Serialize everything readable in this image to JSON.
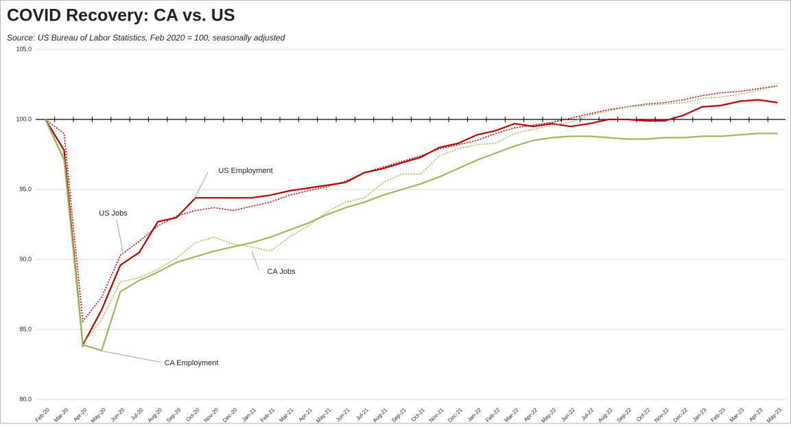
{
  "chart_data": {
    "type": "line",
    "title": "COVID Recovery:  CA vs. US",
    "subtitle": "Source:  US Bureau of Labor Statistics, Feb 2020 = 100, seasonally adjusted",
    "categories": [
      "Feb-20",
      "Mar-20",
      "Apr-20",
      "May-20",
      "Jun-20",
      "Jul-20",
      "Aug-20",
      "Sep-20",
      "Oct-20",
      "Nov-20",
      "Dec-20",
      "Jan-21",
      "Feb-21",
      "Mar-21",
      "Apr-21",
      "May-21",
      "Jun-21",
      "Jul-21",
      "Aug-21",
      "Sep-21",
      "Oct-21",
      "Nov-21",
      "Dec-21",
      "Jan-22",
      "Feb-22",
      "Mar-22",
      "Apr-22",
      "May-22",
      "Jun-22",
      "Jul-22",
      "Aug-22",
      "Sep-22",
      "Oct-22",
      "Nov-22",
      "Dec-22",
      "Jan-23",
      "Feb-23",
      "Mar-23",
      "Apr-23",
      "May-23"
    ],
    "series": [
      {
        "name": "US Employment",
        "color": "#c00000",
        "dash": false,
        "values": [
          100,
          97.8,
          83.9,
          86.4,
          89.6,
          90.5,
          92.7,
          93.0,
          94.4,
          94.4,
          94.4,
          94.4,
          94.6,
          94.9,
          95.1,
          95.3,
          95.5,
          96.2,
          96.5,
          96.9,
          97.3,
          98.0,
          98.3,
          98.9,
          99.2,
          99.7,
          99.5,
          99.7,
          99.5,
          99.7,
          100.0,
          100.0,
          99.9,
          99.9,
          100.3,
          100.9,
          101.0,
          101.3,
          101.4,
          101.2
        ]
      },
      {
        "name": "US Jobs",
        "color": "#c00000",
        "dash": true,
        "values": [
          100,
          99.0,
          85.6,
          87.3,
          90.3,
          91.3,
          92.4,
          93.1,
          93.5,
          93.7,
          93.5,
          93.8,
          94.1,
          94.6,
          94.9,
          95.2,
          95.6,
          96.2,
          96.6,
          97.0,
          97.4,
          97.9,
          98.2,
          98.5,
          99.0,
          99.4,
          99.6,
          99.8,
          100.1,
          100.4,
          100.7,
          100.9,
          101.1,
          101.2,
          101.4,
          101.7,
          101.9,
          102.0,
          102.2,
          102.4
        ]
      },
      {
        "name": "CA Jobs",
        "color": "#9bbb59",
        "dash": true,
        "values": [
          100,
          97.3,
          84.0,
          85.7,
          88.4,
          88.7,
          89.3,
          90.1,
          91.2,
          91.6,
          91.1,
          90.9,
          90.6,
          91.6,
          92.4,
          93.4,
          94.1,
          94.4,
          95.5,
          96.1,
          96.1,
          97.4,
          97.9,
          98.2,
          98.3,
          99.0,
          99.3,
          99.6,
          99.8,
          100.3,
          100.6,
          100.9,
          101.0,
          101.1,
          101.2,
          101.5,
          101.6,
          101.8,
          102.1,
          102.4
        ]
      },
      {
        "name": "CA Employment",
        "color": "#9bbb59",
        "dash": false,
        "values": [
          100,
          97.1,
          83.9,
          83.5,
          87.7,
          88.5,
          89.1,
          89.8,
          90.2,
          90.6,
          90.9,
          91.2,
          91.6,
          92.1,
          92.6,
          93.2,
          93.7,
          94.1,
          94.6,
          95.0,
          95.4,
          95.9,
          96.5,
          97.1,
          97.6,
          98.1,
          98.5,
          98.7,
          98.8,
          98.8,
          98.7,
          98.6,
          98.6,
          98.7,
          98.7,
          98.8,
          98.8,
          98.9,
          99.0,
          99.0
        ]
      }
    ],
    "ylim": [
      80,
      105
    ],
    "yticks": [
      {
        "value": 80,
        "label": "80.0"
      },
      {
        "value": 85,
        "label": "85.0"
      },
      {
        "value": 90,
        "label": "90.0"
      },
      {
        "value": 95,
        "label": "95.0"
      },
      {
        "value": 100,
        "label": "100.0"
      },
      {
        "value": 105,
        "label": "105.0"
      }
    ],
    "x_axis_crosses": 100,
    "grid": true
  }
}
